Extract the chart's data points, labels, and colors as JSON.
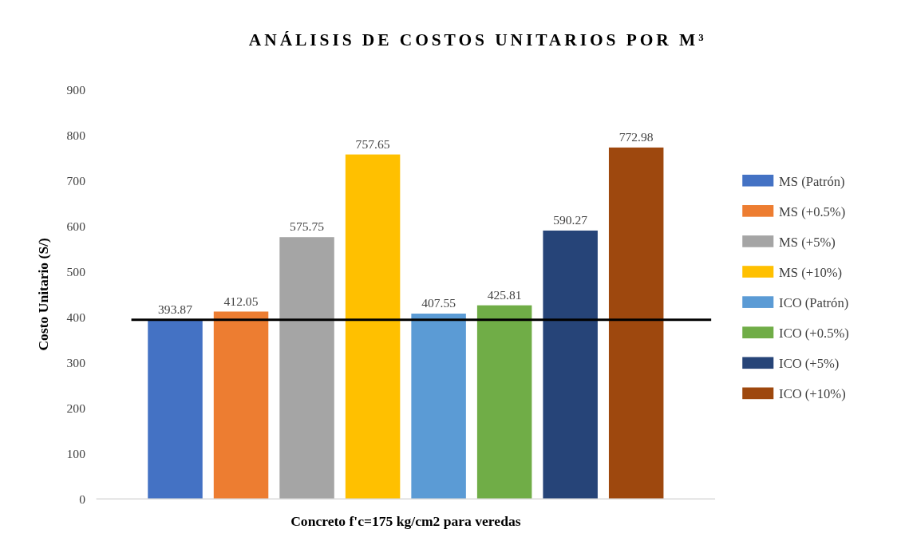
{
  "chart_data": {
    "type": "bar",
    "title": "ANÁLISIS DE COSTOS UNITARIOS POR M³",
    "ylabel": "Costo Unitario (S/)",
    "categories": [
      "Concreto f'c=175 kg/cm2 para veredas"
    ],
    "series": [
      {
        "name": "MS (Patrón)",
        "color": "#4472c4",
        "values": [
          393.87
        ]
      },
      {
        "name": "MS (+0.5%)",
        "color": "#ed7d31",
        "values": [
          412.05
        ]
      },
      {
        "name": "MS (+5%)",
        "color": "#a5a5a5",
        "values": [
          575.75
        ]
      },
      {
        "name": "MS (+10%)",
        "color": "#ffc000",
        "values": [
          757.65
        ]
      },
      {
        "name": "ICO (Patrón)",
        "color": "#5b9bd5",
        "values": [
          407.55
        ]
      },
      {
        "name": "ICO (+0.5%)",
        "color": "#70ad47",
        "values": [
          425.81
        ]
      },
      {
        "name": "ICO (+5%)",
        "color": "#264478",
        "values": [
          590.27
        ]
      },
      {
        "name": "ICO (+10%)",
        "color": "#9e480e",
        "values": [
          772.98
        ]
      }
    ],
    "ylim": [
      0,
      900
    ],
    "yticks": [
      0,
      100,
      200,
      300,
      400,
      500,
      600,
      700,
      800,
      900
    ],
    "grid": false,
    "legend": "right",
    "data_labels": true,
    "ref_lines": [
      {
        "axis": "y",
        "value": 393.87,
        "color": "#000000"
      }
    ]
  }
}
